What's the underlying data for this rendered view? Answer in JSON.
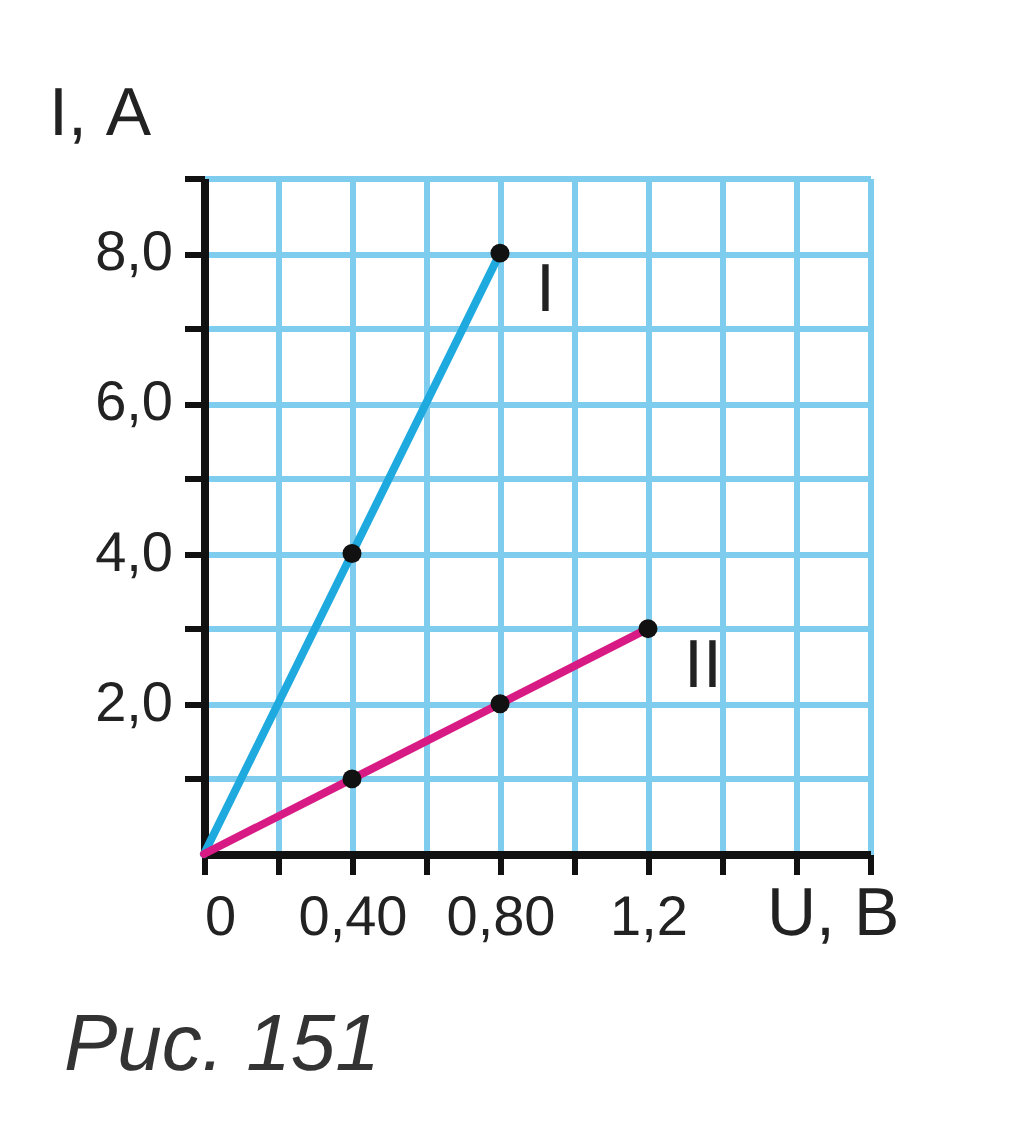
{
  "chart_data": {
    "type": "line",
    "xlabel": "U, В",
    "ylabel": "I, А",
    "annotations": [
      "Рис. 151"
    ],
    "xlim": [
      0,
      1.8
    ],
    "ylim": [
      0,
      9
    ],
    "xticks": [
      {
        "value": 0,
        "label": "0"
      },
      {
        "value": 0.2,
        "label": null
      },
      {
        "value": 0.4,
        "label": "0,40"
      },
      {
        "value": 0.6,
        "label": null
      },
      {
        "value": 0.8,
        "label": "0,80"
      },
      {
        "value": 1.0,
        "label": null
      },
      {
        "value": 1.2,
        "label": "1,2"
      },
      {
        "value": 1.4,
        "label": null
      },
      {
        "value": 1.6,
        "label": null
      },
      {
        "value": 1.8,
        "label": null
      }
    ],
    "yticks": [
      {
        "value": 1,
        "label": null
      },
      {
        "value": 2,
        "label": "2,0"
      },
      {
        "value": 3,
        "label": null
      },
      {
        "value": 4,
        "label": "4,0"
      },
      {
        "value": 5,
        "label": null
      },
      {
        "value": 6,
        "label": "6,0"
      },
      {
        "value": 7,
        "label": null
      },
      {
        "value": 8,
        "label": "8,0"
      },
      {
        "value": 9,
        "label": null
      }
    ],
    "grid": true,
    "marker": "circle",
    "legend": false,
    "series": [
      {
        "name": "I",
        "color": "#1ea9df",
        "x": [
          0,
          0.4,
          0.8
        ],
        "values": [
          0,
          4,
          8
        ]
      },
      {
        "name": "II",
        "color": "#d81b84",
        "x": [
          0,
          0.4,
          0.8,
          1.2
        ],
        "values": [
          0,
          1,
          2,
          3
        ]
      }
    ]
  }
}
